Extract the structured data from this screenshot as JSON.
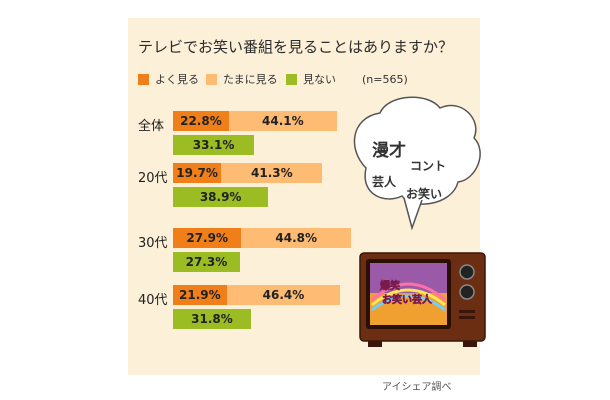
{
  "title": "テレビでお笑い番組を見ることはありますか？",
  "sample": "(n=565)",
  "source": "アイシェア調べ",
  "colors": {
    "often": "#f07f1a",
    "sometimes": "#fdbb73",
    "never": "#9cbc23",
    "panel": "#fdf0d8"
  },
  "bubble": {
    "w1": "漫才",
    "w2": "コント",
    "w3": "芸人",
    "w4": "お笑い"
  },
  "tv_screen": {
    "line1": "爆笑",
    "line2": "お笑い芸人"
  },
  "chart_data": {
    "type": "bar",
    "title": "テレビでお笑い番組を見ることはありますか？",
    "categories": [
      "全体",
      "20代",
      "30代",
      "40代"
    ],
    "series": [
      {
        "name": "よく見る",
        "values": [
          22.8,
          19.7,
          27.9,
          21.9
        ]
      },
      {
        "name": "たまに見る",
        "values": [
          44.1,
          41.3,
          44.8,
          46.4
        ]
      },
      {
        "name": "見ない",
        "values": [
          33.1,
          38.9,
          27.3,
          31.8
        ]
      }
    ],
    "value_labels": [
      [
        "22.8%",
        "44.1%",
        "33.1%"
      ],
      [
        "19.7%",
        "41.3%",
        "38.9%"
      ],
      [
        "27.9%",
        "44.8%",
        "27.3%"
      ],
      [
        "21.9%",
        "46.4%",
        "31.8%"
      ]
    ],
    "legend": "top-left",
    "grid": false
  }
}
